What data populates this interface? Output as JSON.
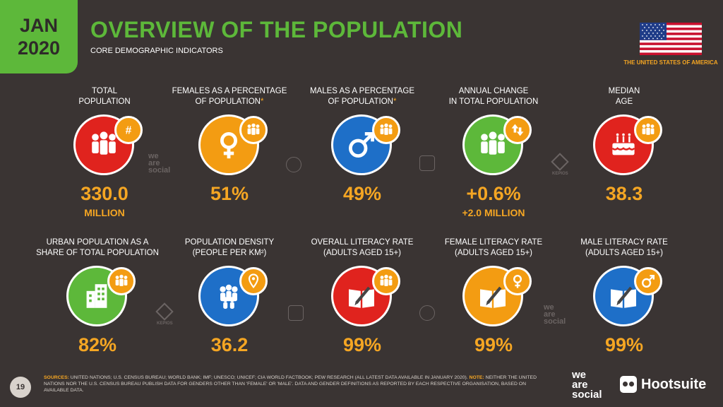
{
  "header": {
    "date_month": "JAN",
    "date_year": "2020",
    "title": "OVERVIEW OF THE POPULATION",
    "subtitle": "CORE DEMOGRAPHIC INDICATORS",
    "country": "THE UNITED STATES OF AMERICA"
  },
  "stats": [
    {
      "label1": "TOTAL",
      "label2": "POPULATION",
      "star": "",
      "value": "330.0",
      "sub": "MILLION",
      "color": "#e0231e",
      "icon": "people-icon",
      "badge": "hash-icon"
    },
    {
      "label1": "FEMALES AS A PERCENTAGE",
      "label2": "OF POPULATION",
      "star": "*",
      "value": "51%",
      "sub": "",
      "color": "#f39c12",
      "icon": "female-icon",
      "badge": "people-icon"
    },
    {
      "label1": "MALES AS A PERCENTAGE",
      "label2": "OF POPULATION",
      "star": "*",
      "value": "49%",
      "sub": "",
      "color": "#1e6fc8",
      "icon": "male-icon",
      "badge": "people-icon"
    },
    {
      "label1": "ANNUAL CHANGE",
      "label2": "IN TOTAL POPULATION",
      "star": "",
      "value": "+0.6%",
      "sub": "+2.0 MILLION",
      "color": "#5db83a",
      "icon": "people-icon",
      "badge": "up-down-arrows-icon"
    },
    {
      "label1": "MEDIAN",
      "label2": "AGE",
      "star": "",
      "value": "38.3",
      "sub": "",
      "color": "#e0231e",
      "icon": "birthday-cake-icon",
      "badge": "people-icon"
    },
    {
      "label1": "URBAN POPULATION AS A",
      "label2": "SHARE OF TOTAL POPULATION",
      "star": "",
      "value": "82%",
      "sub": "",
      "color": "#5db83a",
      "icon": "building-icon",
      "badge": "people-icon"
    },
    {
      "label1": "POPULATION DENSITY",
      "label2": "(PEOPLE PER KM²)",
      "star": "",
      "value": "36.2",
      "sub": "",
      "color": "#1e6fc8",
      "icon": "crowd-icon",
      "badge": "location-pin-icon"
    },
    {
      "label1": "OVERALL LITERACY RATE",
      "label2": "(ADULTS AGED 15+)",
      "star": "",
      "value": "99%",
      "sub": "",
      "color": "#e0231e",
      "icon": "book-pencil-icon",
      "badge": "people-icon"
    },
    {
      "label1": "FEMALE LITERACY RATE",
      "label2": "(ADULTS AGED 15+)",
      "star": "",
      "value": "99%",
      "sub": "",
      "color": "#f39c12",
      "icon": "book-pencil-icon",
      "badge": "female-icon"
    },
    {
      "label1": "MALE LITERACY RATE",
      "label2": "(ADULTS AGED 15+)",
      "star": "",
      "value": "99%",
      "sub": "",
      "color": "#1e6fc8",
      "icon": "book-pencil-icon",
      "badge": "male-icon"
    }
  ],
  "watermarks": {
    "wearesocial": [
      "we",
      "are",
      "social"
    ],
    "kepios": "KEPIOS"
  },
  "footer": {
    "page_number": "19",
    "sources_label": "SOURCES:",
    "sources_text": " UNITED NATIONS; U.S. CENSUS BUREAU; WORLD BANK; IMF; UNESCO; UNICEF; CIA WORLD FACTBOOK; PEW RESEARCH (ALL LATEST DATA AVAILABLE IN JANUARY 2020). ",
    "note_label": "NOTE:",
    "note_text": " NEITHER THE UNITED NATIONS NOR THE U.S. CENSUS BUREAU PUBLISH DATA FOR GENDERS OTHER THAN 'FEMALE' OR 'MALE'. DATA AND GENDER DEFINITIONS AS REPORTED BY EACH RESPECTIVE ORGANISATION, BASED ON AVAILABLE DATA.",
    "logo1": [
      "we",
      "are",
      "social"
    ],
    "logo2": "Hootsuite"
  },
  "colors": {
    "background": "#3a3433",
    "accent_green": "#5db83a",
    "accent_orange": "#f5a623"
  }
}
